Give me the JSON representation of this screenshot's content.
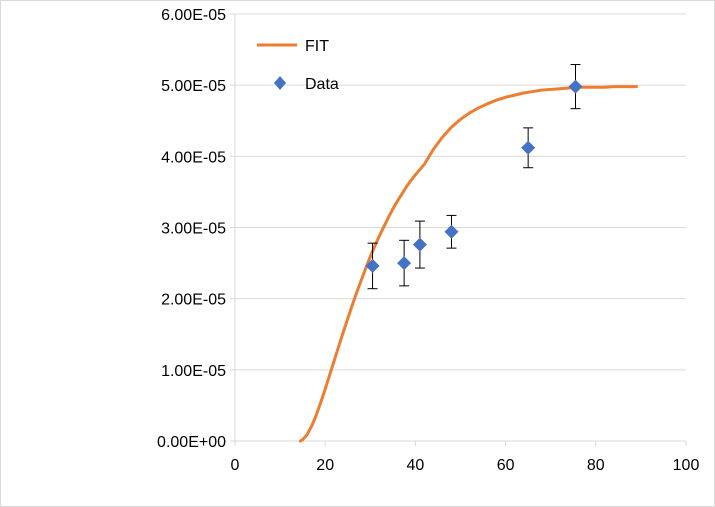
{
  "chart_data": {
    "type": "scatter",
    "title": "",
    "xlabel": "",
    "ylabel": "",
    "xlim": [
      0,
      100
    ],
    "ylim": [
      0,
      6e-05
    ],
    "x_ticks": [
      0,
      20,
      40,
      60,
      80,
      100
    ],
    "x_tick_labels": [
      "0",
      "20",
      "40",
      "60",
      "80",
      "100"
    ],
    "y_ticks": [
      0,
      1e-05,
      2e-05,
      3e-05,
      4e-05,
      5e-05,
      6e-05
    ],
    "y_tick_labels": [
      "0.00E+00",
      "1.00E-05",
      "2.00E-05",
      "3.00E-05",
      "4.00E-05",
      "5.00E-05",
      "6.00E-05"
    ],
    "grid": "horizontal",
    "legend_position": "top-left",
    "series": [
      {
        "name": "FIT",
        "kind": "line",
        "color": "#ED7D31",
        "x": [
          14.5,
          15,
          16,
          17,
          18,
          19,
          20,
          21,
          22,
          23,
          24,
          25,
          26,
          27,
          28,
          29,
          30,
          31,
          32,
          33,
          34,
          35,
          36,
          37,
          38,
          39,
          40,
          42,
          44,
          46,
          48,
          50,
          52,
          54,
          56,
          58,
          60,
          62,
          64,
          66,
          68,
          70,
          72,
          74,
          76,
          78,
          80,
          82,
          84,
          86,
          88,
          89
        ],
        "values": [
          0.0,
          2e-07,
          9e-07,
          2.1e-06,
          3.6e-06,
          5.4e-06,
          7.3e-06,
          9.3e-06,
          1.13e-05,
          1.33e-05,
          1.53e-05,
          1.72e-05,
          1.91e-05,
          2.09e-05,
          2.26e-05,
          2.43e-05,
          2.59e-05,
          2.74e-05,
          2.88e-05,
          3.01e-05,
          3.14e-05,
          3.26e-05,
          3.37e-05,
          3.47e-05,
          3.57e-05,
          3.66e-05,
          3.74e-05,
          3.89e-05,
          4.1e-05,
          4.27e-05,
          4.41e-05,
          4.52e-05,
          4.61e-05,
          4.68e-05,
          4.74e-05,
          4.79e-05,
          4.83e-05,
          4.86e-05,
          4.89e-05,
          4.91e-05,
          4.93e-05,
          4.94e-05,
          4.95e-05,
          4.96e-05,
          4.97e-05,
          4.97e-05,
          4.97e-05,
          4.97e-05,
          4.98e-05,
          4.98e-05,
          4.98e-05,
          4.98e-05
        ]
      },
      {
        "name": "Data",
        "kind": "scatter",
        "color": "#4472C4",
        "marker": "diamond",
        "x": [
          30.5,
          37.5,
          41,
          48,
          65,
          75.5
        ],
        "values": [
          2.46e-05,
          2.5e-05,
          2.76e-05,
          2.94e-05,
          4.12e-05,
          4.98e-05
        ],
        "error": [
          3.2e-06,
          3.2e-06,
          3.3e-06,
          2.3e-06,
          2.8e-06,
          3.1e-06
        ]
      }
    ]
  }
}
